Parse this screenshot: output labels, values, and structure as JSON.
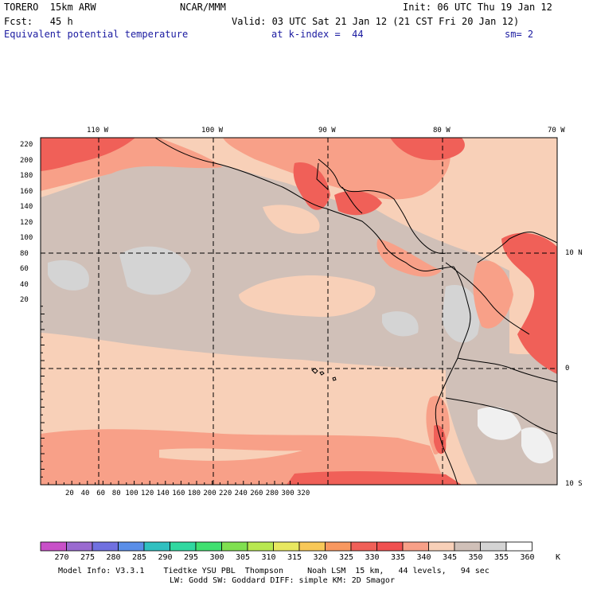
{
  "header": {
    "model": "TORERO  15km ARW",
    "center": "NCAR/MMM",
    "init": "Init: 06 UTC Thu 19 Jan 12",
    "fcst": "Fcst:   45 h",
    "valid": "Valid: 03 UTC Sat 21 Jan 12 (21 CST Fri 20 Jan 12)",
    "field": "Equivalent potential temperature",
    "level": "at k-index =  44",
    "smooth": "sm= 2"
  },
  "axes": {
    "top_lon": [
      "110 W",
      "100 W",
      "90 W",
      "80 W",
      "70 W"
    ],
    "right_lat": [
      "10 N",
      "0",
      "10 S"
    ],
    "left_y": [
      "220",
      "200",
      "180",
      "160",
      "140",
      "120",
      "100",
      "80",
      "60",
      "40",
      "20"
    ],
    "bottom_x": [
      "20",
      "40",
      "60",
      "80",
      "100",
      "120",
      "140",
      "160",
      "180",
      "200",
      "220",
      "240",
      "260",
      "280",
      "300",
      "320"
    ]
  },
  "colorbar": {
    "labels": [
      "270",
      "275",
      "280",
      "285",
      "290",
      "295",
      "300",
      "305",
      "310",
      "315",
      "320",
      "325",
      "330",
      "335",
      "340",
      "345",
      "350",
      "355",
      "360"
    ],
    "unit": "K",
    "colors": [
      "#c850c8",
      "#9a6ad0",
      "#7070e0",
      "#5a8ee8",
      "#30c0c0",
      "#30d8a0",
      "#40e070",
      "#80e050",
      "#b8e850",
      "#e8e860",
      "#f8c858",
      "#f89860",
      "#f06058",
      "#f05050",
      "#f8a088",
      "#f8d0b8",
      "#d0c0b8",
      "#d4d4d4",
      "#ffffff"
    ]
  },
  "footer": {
    "line1": "Model Info: V3.3.1    Tiedtke YSU PBL  Thompson     Noah LSM  15 km,   44 levels,   94 sec",
    "line2": "LW: Godd SW: Goddard DIFF: simple KM: 2D Smagor"
  }
}
